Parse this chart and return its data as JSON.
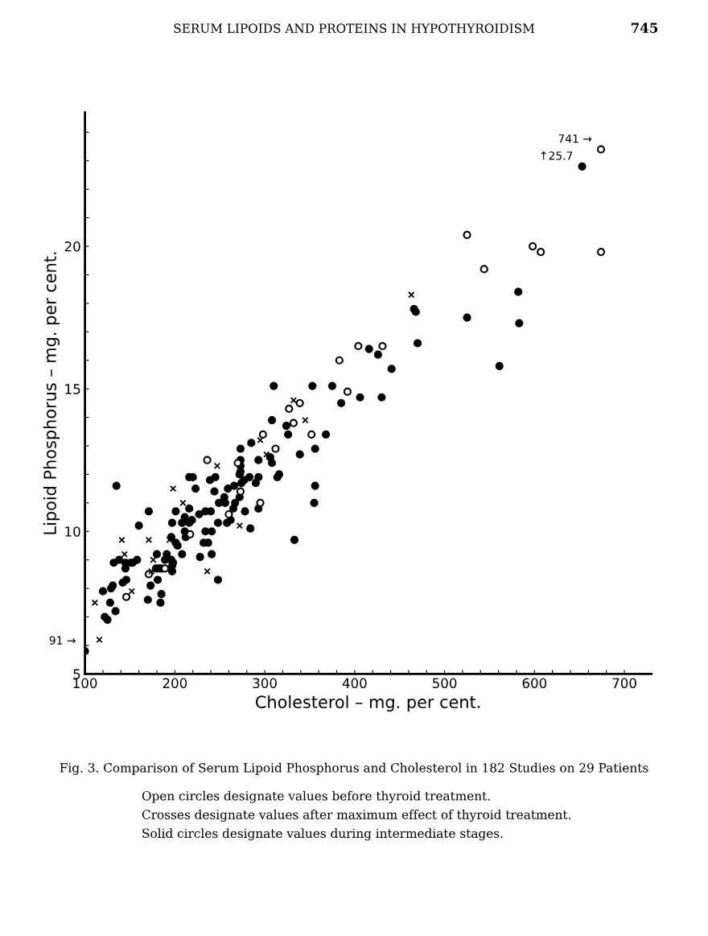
{
  "chart_data": {
    "type": "scatter",
    "title": "Fig. 3. Comparison of Serum Lipoid Phosphorus and Cholesterol in 182 Studies on 29 Patients",
    "xlabel": "Cholesterol – mg. per cent.",
    "ylabel": "Lipoid Phosphorus – mg. per cent.",
    "annotations": [
      "SERUM LIPOIDS AND PROTEINS IN HYPOTHYROIDISM",
      "745",
      "Open circles designate values before thyroid treatment.",
      "Crosses designate values after maximum effect of thyroid treatment.",
      "Solid circles designate values during intermediate stages.",
      {
        "text": "741 →",
        "x": 674,
        "y": 23.4
      },
      {
        "text": "↑25.7",
        "x": 653,
        "y": 22.8
      },
      {
        "text": "91 →",
        "x": 100,
        "y": 5.8
      }
    ],
    "xlim": [
      100,
      730
    ],
    "ylim": [
      5,
      24.7
    ],
    "xticks": [
      100,
      {
        "value": 120,
        "label": null
      },
      {
        "value": 140,
        "label": null
      },
      {
        "value": 160,
        "label": null
      },
      {
        "value": 180,
        "label": null
      },
      200,
      {
        "value": 220,
        "label": null
      },
      {
        "value": 240,
        "label": null
      },
      {
        "value": 260,
        "label": null
      },
      {
        "value": 280,
        "label": null
      },
      300,
      {
        "value": 320,
        "label": null
      },
      {
        "value": 340,
        "label": null
      },
      {
        "value": 360,
        "label": null
      },
      {
        "value": 380,
        "label": null
      },
      400,
      {
        "value": 420,
        "label": null
      },
      {
        "value": 440,
        "label": null
      },
      {
        "value": 460,
        "label": null
      },
      {
        "value": 480,
        "label": null
      },
      500,
      {
        "value": 520,
        "label": null
      },
      {
        "value": 540,
        "label": null
      },
      {
        "value": 560,
        "label": null
      },
      {
        "value": 580,
        "label": null
      },
      600,
      {
        "value": 620,
        "label": null
      },
      {
        "value": 640,
        "label": null
      },
      {
        "value": 660,
        "label": null
      },
      {
        "value": 680,
        "label": null
      },
      700
    ],
    "yticks": [
      5,
      {
        "value": 6,
        "label": null
      },
      {
        "value": 7,
        "label": null
      },
      {
        "value": 8,
        "label": null
      },
      {
        "value": 9,
        "label": null
      },
      10,
      {
        "value": 11,
        "label": null
      },
      {
        "value": 12,
        "label": null
      },
      {
        "value": 13,
        "label": null
      },
      {
        "value": 14,
        "label": null
      },
      15,
      {
        "value": 16,
        "label": null
      },
      {
        "value": 17,
        "label": null
      },
      {
        "value": 18,
        "label": null
      },
      {
        "value": 19,
        "label": null
      },
      20,
      {
        "value": 21,
        "label": null
      },
      {
        "value": 22,
        "label": null
      },
      {
        "value": 23,
        "label": null
      },
      {
        "value": 24,
        "label": null
      }
    ],
    "grid": false,
    "legend": false,
    "series": [
      {
        "marker": "circle",
        "color": "#ffffff",
        "x": [
          674,
          674,
          598,
          607,
          544,
          525,
          431,
          404,
          392,
          383,
          352,
          339,
          327,
          332,
          312,
          298,
          295,
          270,
          273,
          260,
          236,
          217,
          189,
          171,
          146
        ],
        "values": [
          23.4,
          19.8,
          20.0,
          19.8,
          19.2,
          20.4,
          16.5,
          16.5,
          14.9,
          16.0,
          13.4,
          14.5,
          14.3,
          13.8,
          12.9,
          13.4,
          11.0,
          12.4,
          11.4,
          10.6,
          12.5,
          9.9,
          8.7,
          8.5,
          7.7
        ]
      },
      {
        "marker": "cross",
        "color": "#000000",
        "x": [
          463,
          345,
          332,
          302,
          295,
          272,
          247,
          236,
          209,
          208,
          198,
          194,
          176,
          174,
          171,
          152,
          144,
          141,
          116,
          111
        ],
        "values": [
          18.3,
          13.9,
          14.6,
          12.7,
          13.2,
          10.2,
          12.3,
          8.6,
          11.0,
          10.3,
          11.5,
          9.7,
          9.0,
          8.6,
          9.7,
          7.9,
          9.2,
          9.7,
          6.2,
          7.5
        ]
      },
      {
        "marker": "circle",
        "color": "#000000",
        "x": [
          653,
          582,
          583,
          561,
          525,
          466,
          468,
          470,
          441,
          426,
          430,
          416,
          406,
          385,
          375,
          368,
          353,
          356,
          356,
          355,
          339,
          333,
          324,
          326,
          310,
          308,
          316,
          314,
          306,
          308,
          293,
          285,
          273,
          293,
          284,
          293,
          290,
          283,
          278,
          273,
          273,
          273,
          272,
          277,
          274,
          272,
          266,
          267,
          265,
          262,
          258,
          259,
          255,
          256,
          249,
          248,
          248,
          245,
          239,
          244,
          240,
          234,
          227,
          241,
          234,
          237,
          232,
          241,
          228,
          220,
          216,
          223,
          216,
          219,
          216,
          211,
          208,
          211,
          212,
          201,
          197,
          196,
          201,
          203,
          208,
          196,
          198,
          197,
          197,
          191,
          189,
          185,
          182,
          180,
          179,
          181,
          173,
          185,
          184,
          170,
          171,
          160,
          158,
          153,
          151,
          145,
          145,
          138,
          132,
          146,
          142,
          131,
          129,
          120,
          128,
          134,
          122,
          125,
          135,
          100
        ],
        "values": [
          22.8,
          18.4,
          17.3,
          15.8,
          17.5,
          17.8,
          17.7,
          16.6,
          15.7,
          16.2,
          14.7,
          16.4,
          14.7,
          14.5,
          15.1,
          13.4,
          15.1,
          12.9,
          11.6,
          11.0,
          12.7,
          9.7,
          13.7,
          13.4,
          15.1,
          13.9,
          12.0,
          11.9,
          12.6,
          12.4,
          12.5,
          13.1,
          12.9,
          10.8,
          10.1,
          11.9,
          11.7,
          11.9,
          10.7,
          12.5,
          12.3,
          12.1,
          12.0,
          11.8,
          11.7,
          11.2,
          11.6,
          11.0,
          10.8,
          10.4,
          10.3,
          11.5,
          11.2,
          11.0,
          11.0,
          10.3,
          8.3,
          11.9,
          11.8,
          11.4,
          10.7,
          10.7,
          10.6,
          10.0,
          10.0,
          9.6,
          9.6,
          9.2,
          9.1,
          11.9,
          11.9,
          11.5,
          10.8,
          10.4,
          10.3,
          10.5,
          10.3,
          10.0,
          9.8,
          10.7,
          10.3,
          9.8,
          9.6,
          9.5,
          9.2,
          9.0,
          8.9,
          8.8,
          8.6,
          9.2,
          9.0,
          8.7,
          8.7,
          9.2,
          8.7,
          8.3,
          8.1,
          7.8,
          7.5,
          7.6,
          10.7,
          10.2,
          9.0,
          8.9,
          8.9,
          8.9,
          8.7,
          9.0,
          8.9,
          8.3,
          8.2,
          8.1,
          8.0,
          7.9,
          7.5,
          7.2,
          7.0,
          6.9,
          11.6,
          5.8
        ]
      }
    ]
  }
}
